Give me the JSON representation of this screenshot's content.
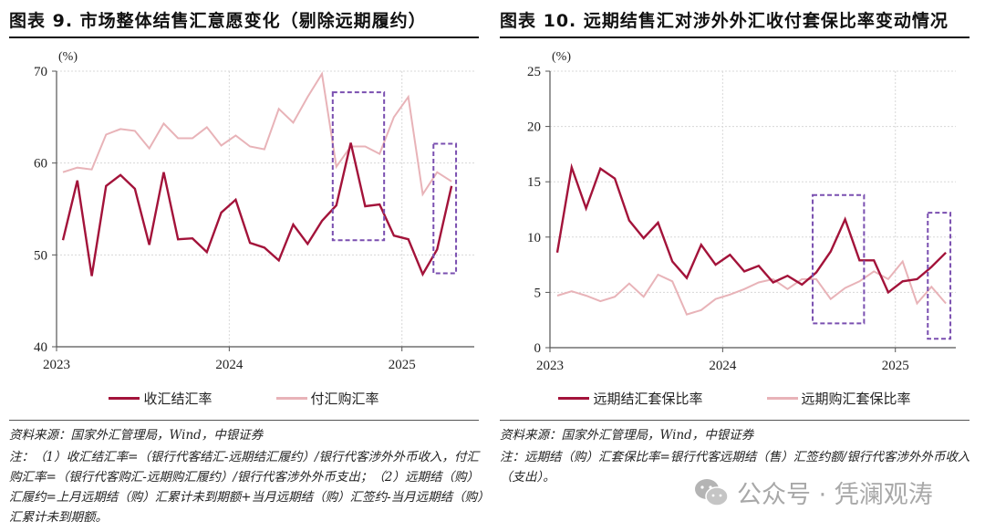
{
  "colors": {
    "dark_series": "#a3133a",
    "light_series": "#e8b3b8",
    "highlight_box": "#7a4fb0",
    "axis": "#555555",
    "grid": "#d8d8d8"
  },
  "watermark": {
    "icon": "wechat-icon",
    "text": "公众号 · 凭澜观涛"
  },
  "chart_data": [
    {
      "type": "line",
      "title": "图表 9. 市场整体结售汇意愿变化（剔除远期履约）",
      "unit_label": "(%)",
      "xlabel": "",
      "ylabel": "(%)",
      "ylim": [
        40,
        70
      ],
      "yticks": [
        40,
        50,
        60,
        70
      ],
      "x_start": "2023-01",
      "x_end": "2025-04",
      "xtick_labels": [
        "2023",
        "2024",
        "2025"
      ],
      "xtick_month_index": [
        0,
        12,
        24
      ],
      "grid": true,
      "legend_position": "bottom",
      "series": [
        {
          "name": "收汇结汇率",
          "color_key": "dark_series",
          "values": [
            51.6,
            58.1,
            47.7,
            57.5,
            58.7,
            57.2,
            51.1,
            59.0,
            51.7,
            51.8,
            50.3,
            54.6,
            56.0,
            51.3,
            50.8,
            49.4,
            53.3,
            51.2,
            53.7,
            55.4,
            62.2,
            55.3,
            55.5,
            52.1,
            51.7,
            47.9,
            50.6,
            57.5
          ]
        },
        {
          "name": "付汇购汇率",
          "color_key": "light_series",
          "values": [
            59.0,
            59.5,
            59.3,
            63.1,
            63.7,
            63.5,
            61.6,
            64.3,
            62.7,
            62.7,
            63.9,
            61.9,
            63.0,
            61.8,
            61.5,
            65.9,
            64.4,
            67.2,
            69.7,
            59.6,
            61.8,
            61.8,
            61.0,
            65.0,
            67.2,
            56.6,
            59.0,
            58.0
          ]
        }
      ],
      "highlight_boxes": [
        {
          "from_month_index": 19,
          "to_month_index": 22,
          "y_low": 51.6,
          "y_high": 67.7
        },
        {
          "from_month_index": 26,
          "to_month_index": 27,
          "y_low": 48.0,
          "y_high": 62.1
        }
      ],
      "source": "资料来源：国家外汇管理局，Wind，中银证券",
      "note": "注：（1）收汇结汇率=（银行代客结汇-远期结汇履约）/银行代客涉外外币收入，付汇购汇率=（银行代客购汇-远期购汇履约）/银行代客涉外外币支出；（2）远期结（购）汇履约=上月远期结（购）汇累计未到期额+当月远期结（购）汇签约-当月远期结（购）汇累计未到期额。"
    },
    {
      "type": "line",
      "title": "图表 10. 远期结售汇对涉外外汇收付套保比率变动情况",
      "unit_label": "(%)",
      "xlabel": "",
      "ylabel": "(%)",
      "ylim": [
        0,
        25
      ],
      "yticks": [
        0,
        5,
        10,
        15,
        20,
        25
      ],
      "x_start": "2023-01",
      "x_end": "2025-04",
      "xtick_labels": [
        "2023",
        "2024",
        "2025"
      ],
      "xtick_month_index": [
        0,
        12,
        24
      ],
      "grid": true,
      "legend_position": "bottom",
      "series": [
        {
          "name": "远期结汇套保比率",
          "color_key": "dark_series",
          "values": [
            8.6,
            16.3,
            12.6,
            16.2,
            15.3,
            11.5,
            9.9,
            11.3,
            7.8,
            6.3,
            9.3,
            7.5,
            8.4,
            6.9,
            7.4,
            5.9,
            6.5,
            5.7,
            6.8,
            8.7,
            11.6,
            7.9,
            7.9,
            5.0,
            6.0,
            6.2,
            7.3,
            8.6
          ]
        },
        {
          "name": "远期购汇套保比率",
          "color_key": "light_series",
          "values": [
            4.7,
            5.1,
            4.7,
            4.2,
            4.6,
            5.8,
            4.6,
            6.6,
            6.0,
            3.0,
            3.4,
            4.4,
            4.8,
            5.3,
            5.9,
            6.2,
            5.3,
            6.2,
            6.2,
            4.4,
            5.4,
            6.0,
            6.9,
            6.2,
            7.8,
            4.0,
            5.5,
            4.0
          ]
        }
      ],
      "highlight_boxes": [
        {
          "from_month_index": 18,
          "to_month_index": 21,
          "y_low": 2.2,
          "y_high": 13.8
        },
        {
          "from_month_index": 26,
          "to_month_index": 27,
          "y_low": 0.8,
          "y_high": 12.2
        }
      ],
      "source": "资料来源：国家外汇管理局，Wind，中银证券",
      "note": "注：远期结（购）汇套保比率=银行代客远期结（售）汇签约额/银行代客涉外外币收入（支出）。"
    }
  ]
}
